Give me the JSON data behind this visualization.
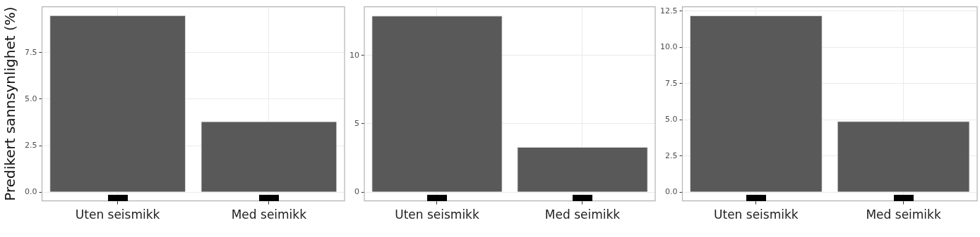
{
  "chart_data": [
    {
      "type": "bar",
      "ylabel": "Predikert sannsynlighet (%)",
      "categories": [
        "Uten seismikk",
        "Med seimikk"
      ],
      "values": [
        9.5,
        3.8
      ],
      "color": "#595959",
      "ylim": [
        -0.47,
        9.96
      ],
      "yticks": [
        {
          "value": 0,
          "label": "0.0"
        },
        {
          "value": 2.5,
          "label": "2.5"
        },
        {
          "value": 5,
          "label": "5.0"
        },
        {
          "value": 7.5,
          "label": "7.5"
        }
      ],
      "grid": true
    },
    {
      "type": "bar",
      "categories": [
        "Uten seismikk",
        "Med seimikk"
      ],
      "values": [
        12.9,
        3.3
      ],
      "color": "#595959",
      "ylim": [
        -0.64,
        13.55
      ],
      "yticks": [
        0,
        5,
        10
      ],
      "grid": true
    },
    {
      "type": "bar",
      "categories": [
        "Uten seismikk",
        "Med seimikk"
      ],
      "values": [
        12.2,
        4.9
      ],
      "color": "#595959",
      "ylim": [
        -0.6,
        12.8
      ],
      "yticks": [
        {
          "value": 0,
          "label": "0.0"
        },
        {
          "value": 2.5,
          "label": "2.5"
        },
        {
          "value": 5,
          "label": "5.0"
        },
        {
          "value": 7.5,
          "label": "7.5"
        },
        {
          "value": 10,
          "label": "10.0"
        },
        {
          "value": 12.5,
          "label": "12.5"
        }
      ],
      "grid": true
    }
  ]
}
